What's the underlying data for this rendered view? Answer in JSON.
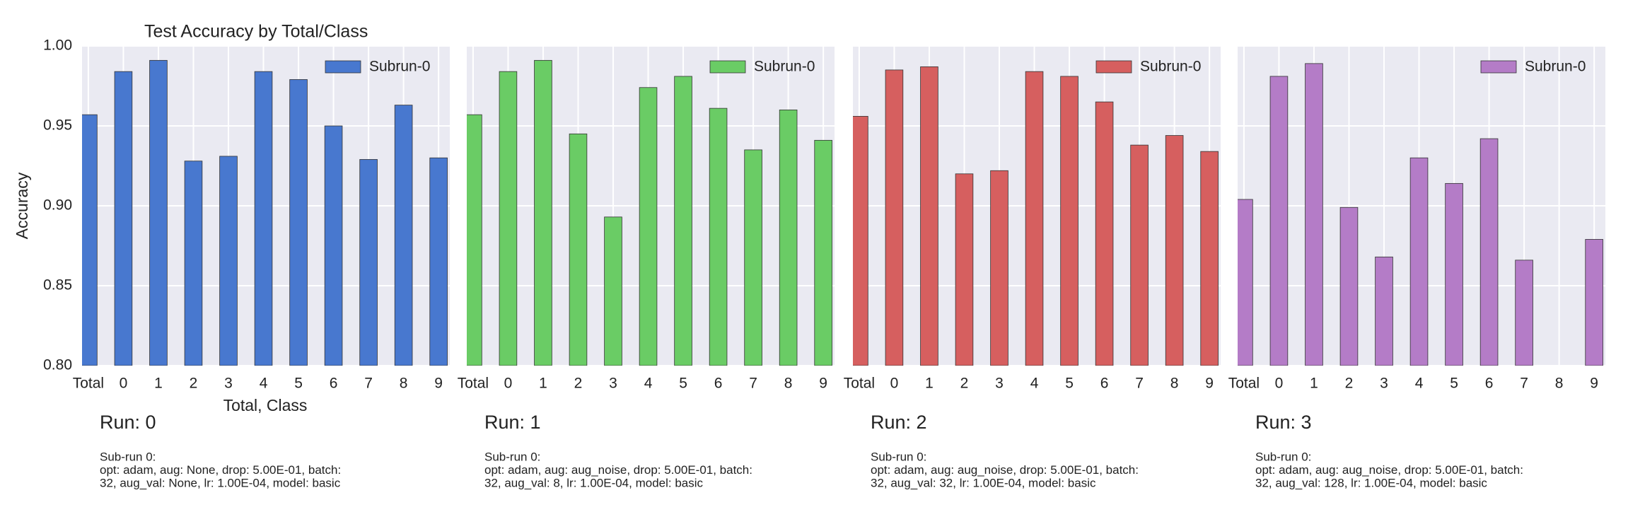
{
  "chart_data": [
    {
      "type": "bar",
      "title": "Test Accuracy by Total/Class",
      "y_label": "Accuracy",
      "x_label": "Total, Class",
      "categories": [
        "Total",
        "0",
        "1",
        "2",
        "3",
        "4",
        "5",
        "6",
        "7",
        "8",
        "9"
      ],
      "series": [
        {
          "name": "Subrun-0",
          "color": "#4878cf",
          "values": [
            0.957,
            0.984,
            0.991,
            0.928,
            0.931,
            0.984,
            0.979,
            0.95,
            0.929,
            0.963,
            0.93
          ]
        }
      ],
      "ylim": [
        0.8,
        1.0
      ],
      "yticks": [
        {
          "value": 0.8,
          "label": "0.80"
        },
        {
          "value": 0.85,
          "label": "0.85"
        },
        {
          "value": 0.9,
          "label": "0.90"
        },
        {
          "value": 0.95,
          "label": "0.95"
        },
        {
          "value": 1.0,
          "label": "1.00"
        }
      ],
      "grid": true,
      "legend": "upper right",
      "run_label": "Run: 0",
      "notes": [
        "Sub-run 0:",
        "opt: adam, aug: None, drop: 5.00E-01, batch:",
        "32, aug_val: None, lr: 1.00E-04, model: basic"
      ]
    },
    {
      "type": "bar",
      "categories": [
        "Total",
        "0",
        "1",
        "2",
        "3",
        "4",
        "5",
        "6",
        "7",
        "8",
        "9"
      ],
      "series": [
        {
          "name": "Subrun-0",
          "color": "#6acc65",
          "values": [
            0.957,
            0.984,
            0.991,
            0.945,
            0.893,
            0.974,
            0.981,
            0.961,
            0.935,
            0.96,
            0.941
          ]
        }
      ],
      "ylim": [
        0.8,
        1.0
      ],
      "grid": true,
      "legend": "upper right",
      "run_label": "Run: 1",
      "notes": [
        "Sub-run 0:",
        "opt: adam, aug: aug_noise, drop: 5.00E-01, batch:",
        "32, aug_val: 8, lr: 1.00E-04, model: basic"
      ]
    },
    {
      "type": "bar",
      "categories": [
        "Total",
        "0",
        "1",
        "2",
        "3",
        "4",
        "5",
        "6",
        "7",
        "8",
        "9"
      ],
      "series": [
        {
          "name": "Subrun-0",
          "color": "#d65f5f",
          "values": [
            0.956,
            0.985,
            0.987,
            0.92,
            0.922,
            0.984,
            0.981,
            0.965,
            0.938,
            0.944,
            0.934
          ]
        }
      ],
      "ylim": [
        0.8,
        1.0
      ],
      "grid": true,
      "legend": "upper right",
      "run_label": "Run: 2",
      "notes": [
        "Sub-run 0:",
        "opt: adam, aug: aug_noise, drop: 5.00E-01, batch:",
        "32, aug_val: 32, lr: 1.00E-04, model: basic"
      ]
    },
    {
      "type": "bar",
      "categories": [
        "Total",
        "0",
        "1",
        "2",
        "3",
        "4",
        "5",
        "6",
        "7",
        "8",
        "9"
      ],
      "series": [
        {
          "name": "Subrun-0",
          "color": "#b47cc7",
          "values": [
            0.904,
            0.981,
            0.989,
            0.899,
            0.868,
            0.93,
            0.914,
            0.942,
            0.866,
            null,
            0.879
          ]
        }
      ],
      "ylim": [
        0.8,
        1.0
      ],
      "grid": true,
      "legend": "upper right",
      "run_label": "Run: 3",
      "notes": [
        "Sub-run 0:",
        "opt: adam, aug: aug_noise, drop: 5.00E-01, batch:",
        "32, aug_val: 128, lr: 1.00E-04, model: basic"
      ]
    }
  ]
}
